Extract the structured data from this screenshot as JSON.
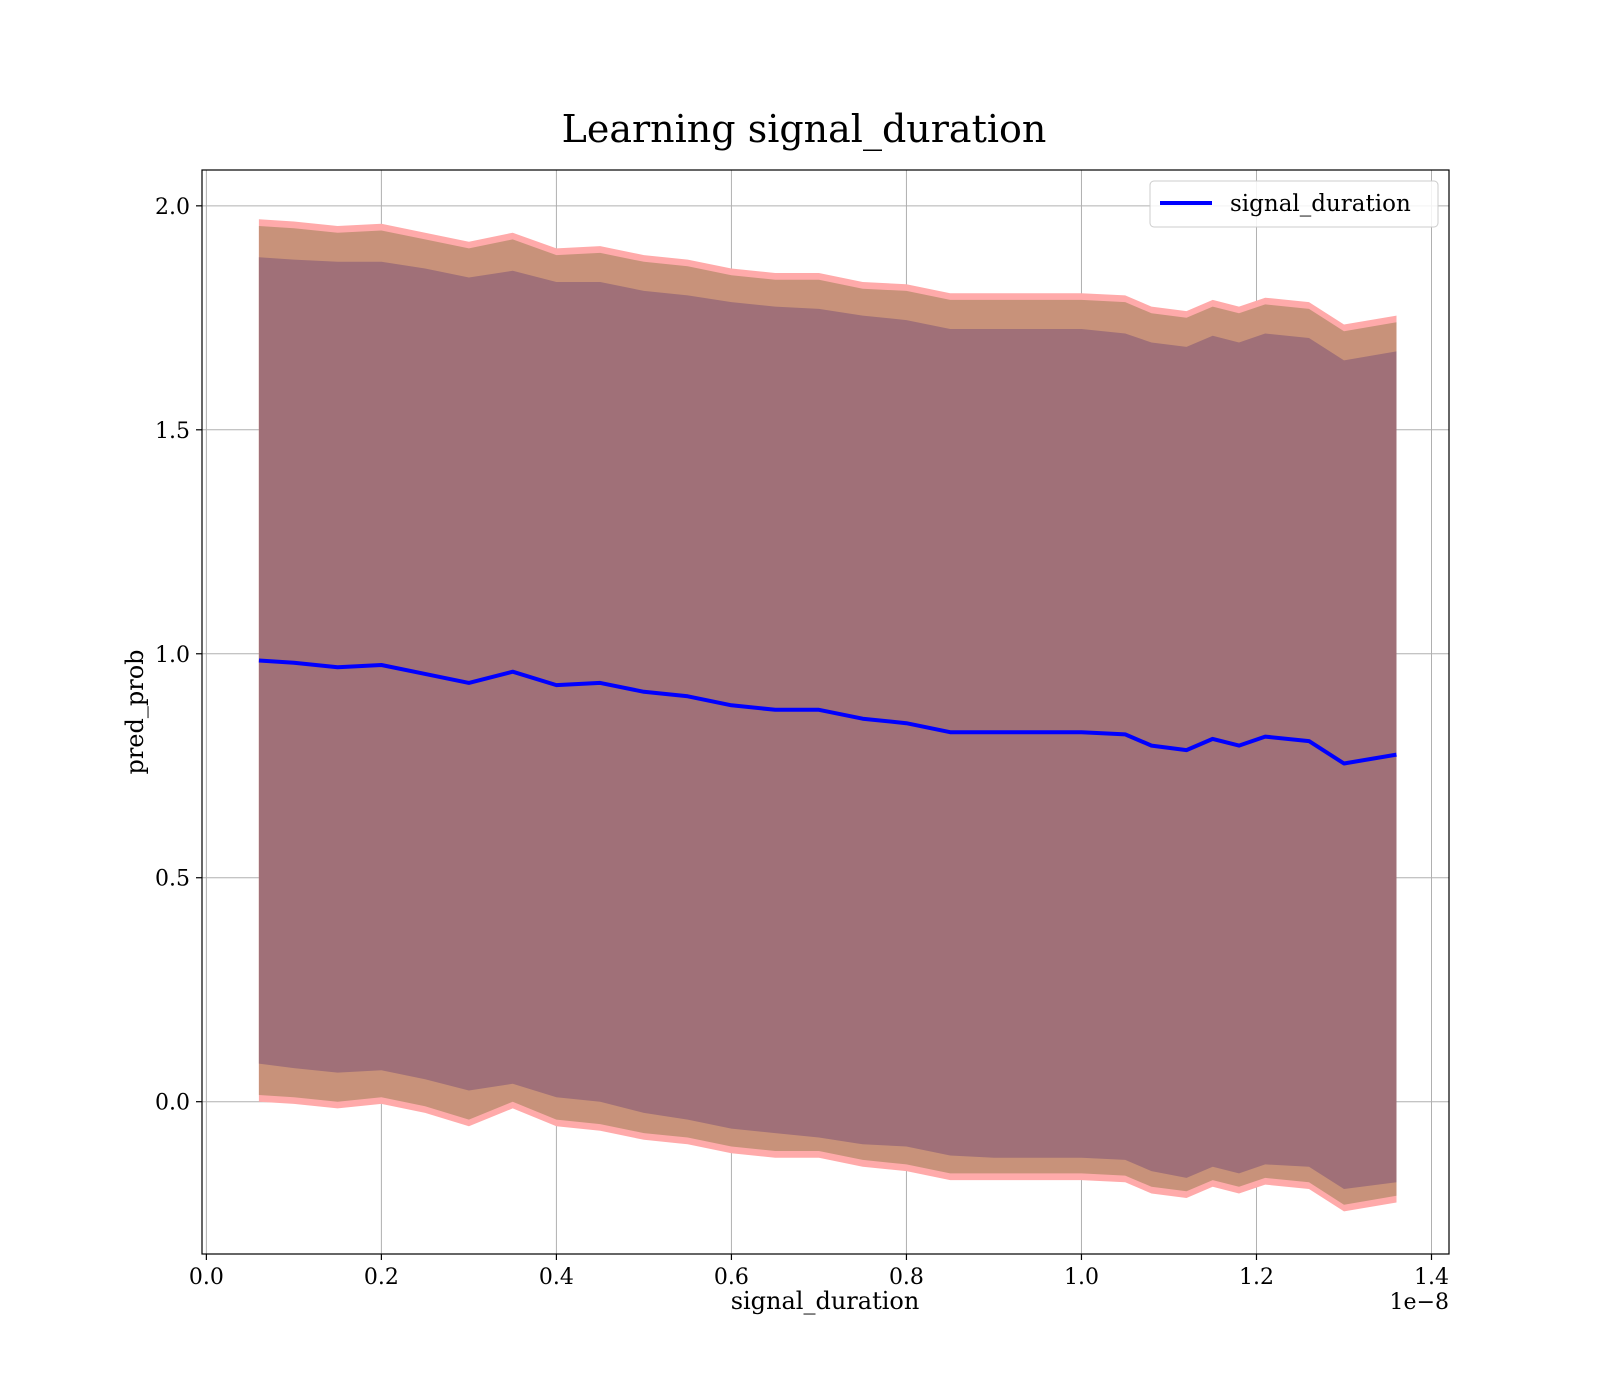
{
  "chart_data": {
    "type": "area",
    "title": "Learning signal_duration",
    "xlabel": "signal_duration",
    "ylabel": "pred_prob",
    "x_offset_label": "1e−8",
    "xlim": [
      -0.005,
      1.42
    ],
    "ylim": [
      -0.34,
      2.08
    ],
    "x_ticks": [
      0.0,
      0.2,
      0.4,
      0.6,
      0.8,
      1.0,
      1.2,
      1.4
    ],
    "x_tick_labels": [
      "0.0",
      "0.2",
      "0.4",
      "0.6",
      "0.8",
      "1.0",
      "1.2",
      "1.4"
    ],
    "y_ticks": [
      0.0,
      0.5,
      1.0,
      1.5,
      2.0
    ],
    "y_tick_labels": [
      "0.0",
      "0.5",
      "1.0",
      "1.5",
      "2.0"
    ],
    "grid": true,
    "legend_position": "top-right",
    "colors": {
      "line": "#0000ff",
      "outer_band": "#ffaaaa",
      "middle_band": "#c8927a",
      "inner_band": "#a07078"
    },
    "x": [
      0.06,
      0.1,
      0.15,
      0.2,
      0.25,
      0.3,
      0.35,
      0.4,
      0.45,
      0.5,
      0.55,
      0.6,
      0.65,
      0.7,
      0.75,
      0.8,
      0.85,
      0.9,
      0.95,
      1.0,
      1.05,
      1.08,
      1.12,
      1.15,
      1.18,
      1.21,
      1.26,
      1.3,
      1.36
    ],
    "series": [
      {
        "name": "signal_duration",
        "values": [
          0.985,
          0.98,
          0.97,
          0.975,
          0.955,
          0.935,
          0.96,
          0.93,
          0.935,
          0.915,
          0.905,
          0.885,
          0.875,
          0.875,
          0.855,
          0.845,
          0.825,
          0.825,
          0.825,
          0.825,
          0.82,
          0.795,
          0.785,
          0.81,
          0.795,
          0.815,
          0.805,
          0.755,
          0.775
        ]
      }
    ],
    "bands": [
      {
        "lower": [
          0.0,
          -0.005,
          -0.015,
          -0.005,
          -0.025,
          -0.055,
          -0.015,
          -0.055,
          -0.065,
          -0.085,
          -0.095,
          -0.115,
          -0.125,
          -0.125,
          -0.145,
          -0.155,
          -0.175,
          -0.175,
          -0.175,
          -0.175,
          -0.18,
          -0.205,
          -0.215,
          -0.19,
          -0.205,
          -0.185,
          -0.195,
          -0.245,
          -0.225
        ],
        "upper": [
          1.97,
          1.965,
          1.955,
          1.96,
          1.94,
          1.92,
          1.94,
          1.905,
          1.91,
          1.89,
          1.88,
          1.86,
          1.85,
          1.85,
          1.83,
          1.825,
          1.805,
          1.805,
          1.805,
          1.805,
          1.8,
          1.775,
          1.765,
          1.79,
          1.775,
          1.795,
          1.785,
          1.735,
          1.755
        ]
      },
      {
        "lower": [
          0.015,
          0.01,
          0.0,
          0.01,
          -0.01,
          -0.04,
          0.0,
          -0.04,
          -0.05,
          -0.07,
          -0.08,
          -0.1,
          -0.11,
          -0.11,
          -0.13,
          -0.14,
          -0.16,
          -0.16,
          -0.16,
          -0.16,
          -0.165,
          -0.19,
          -0.2,
          -0.175,
          -0.19,
          -0.17,
          -0.18,
          -0.23,
          -0.21
        ],
        "upper": [
          1.955,
          1.95,
          1.94,
          1.945,
          1.925,
          1.905,
          1.925,
          1.89,
          1.895,
          1.875,
          1.865,
          1.845,
          1.835,
          1.835,
          1.815,
          1.81,
          1.79,
          1.79,
          1.79,
          1.79,
          1.785,
          1.76,
          1.75,
          1.775,
          1.76,
          1.78,
          1.77,
          1.72,
          1.74
        ]
      },
      {
        "lower": [
          0.085,
          0.075,
          0.065,
          0.07,
          0.05,
          0.025,
          0.04,
          0.01,
          0.0,
          -0.025,
          -0.04,
          -0.06,
          -0.07,
          -0.08,
          -0.095,
          -0.1,
          -0.12,
          -0.125,
          -0.125,
          -0.125,
          -0.13,
          -0.155,
          -0.17,
          -0.145,
          -0.16,
          -0.14,
          -0.145,
          -0.195,
          -0.18
        ],
        "upper": [
          1.885,
          1.88,
          1.875,
          1.875,
          1.86,
          1.84,
          1.855,
          1.83,
          1.83,
          1.81,
          1.8,
          1.785,
          1.775,
          1.77,
          1.755,
          1.745,
          1.725,
          1.725,
          1.725,
          1.725,
          1.715,
          1.695,
          1.685,
          1.71,
          1.695,
          1.715,
          1.705,
          1.655,
          1.675
        ]
      }
    ]
  }
}
